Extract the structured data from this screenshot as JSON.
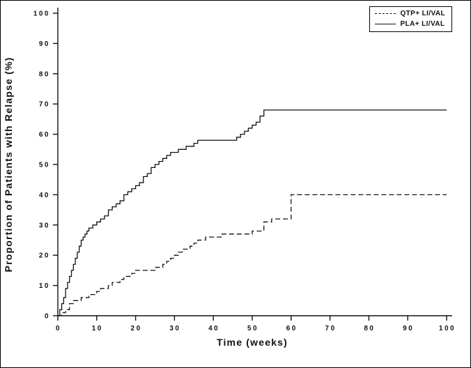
{
  "chart_data": {
    "type": "line",
    "subtype": "kaplan-meier-step",
    "title": "",
    "xlabel": "Time (weeks)",
    "ylabel": "Proportion of Patients with Relapse (%)",
    "xlim": [
      0,
      100
    ],
    "ylim": [
      0,
      100
    ],
    "xticks": [
      0,
      10,
      20,
      30,
      40,
      50,
      60,
      70,
      80,
      90,
      100
    ],
    "yticks": [
      0,
      10,
      20,
      30,
      40,
      50,
      60,
      70,
      80,
      90,
      100
    ],
    "grid": false,
    "legend_position": "top-right",
    "line_color": "#111111",
    "series": [
      {
        "name": "QTP+ LI/VAL",
        "line": "dashed",
        "points": [
          [
            0,
            0
          ],
          [
            1,
            1
          ],
          [
            2,
            2
          ],
          [
            3,
            4
          ],
          [
            4,
            5
          ],
          [
            6,
            6
          ],
          [
            8,
            7
          ],
          [
            10,
            8
          ],
          [
            11,
            9
          ],
          [
            13,
            10
          ],
          [
            14,
            11
          ],
          [
            16,
            12
          ],
          [
            17,
            13
          ],
          [
            19,
            14
          ],
          [
            20,
            15
          ],
          [
            25,
            16
          ],
          [
            27,
            17
          ],
          [
            28,
            18
          ],
          [
            29,
            19
          ],
          [
            30,
            20
          ],
          [
            31,
            21
          ],
          [
            32,
            22
          ],
          [
            34,
            23
          ],
          [
            35,
            24
          ],
          [
            36,
            25
          ],
          [
            38,
            26
          ],
          [
            42,
            27
          ],
          [
            50,
            28
          ],
          [
            53,
            31
          ],
          [
            55,
            32
          ],
          [
            60,
            40
          ],
          [
            100,
            40
          ]
        ]
      },
      {
        "name": "PLA+ LI/VAL",
        "line": "solid",
        "points": [
          [
            0,
            0
          ],
          [
            0.5,
            2
          ],
          [
            1,
            4
          ],
          [
            1.5,
            6
          ],
          [
            2,
            9
          ],
          [
            2.5,
            11
          ],
          [
            3,
            13
          ],
          [
            3.5,
            15
          ],
          [
            4,
            17
          ],
          [
            4.5,
            19
          ],
          [
            5,
            21
          ],
          [
            5.5,
            23
          ],
          [
            6,
            25
          ],
          [
            6.5,
            26
          ],
          [
            7,
            27
          ],
          [
            7.5,
            28
          ],
          [
            8,
            29
          ],
          [
            9,
            30
          ],
          [
            10,
            31
          ],
          [
            11,
            32
          ],
          [
            12,
            33
          ],
          [
            13,
            35
          ],
          [
            14,
            36
          ],
          [
            15,
            37
          ],
          [
            16,
            38
          ],
          [
            17,
            40
          ],
          [
            18,
            41
          ],
          [
            19,
            42
          ],
          [
            20,
            43
          ],
          [
            21,
            44
          ],
          [
            22,
            46
          ],
          [
            23,
            47
          ],
          [
            24,
            49
          ],
          [
            25,
            50
          ],
          [
            26,
            51
          ],
          [
            27,
            52
          ],
          [
            28,
            53
          ],
          [
            29,
            54
          ],
          [
            31,
            55
          ],
          [
            33,
            56
          ],
          [
            35,
            57
          ],
          [
            36,
            58
          ],
          [
            46,
            59
          ],
          [
            47,
            60
          ],
          [
            48,
            61
          ],
          [
            49,
            62
          ],
          [
            50,
            63
          ],
          [
            51,
            64
          ],
          [
            52,
            66
          ],
          [
            53,
            68
          ],
          [
            100,
            68
          ]
        ]
      }
    ]
  }
}
